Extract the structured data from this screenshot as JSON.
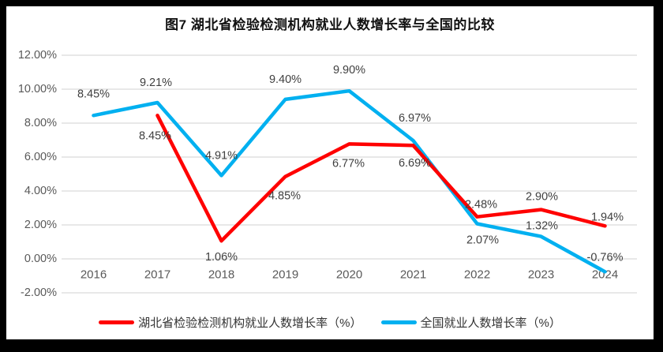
{
  "chart_data": {
    "type": "line",
    "title": "图7 湖北省检验检测机构就业人数增长率与全国的比较",
    "categories": [
      "2016",
      "2017",
      "2018",
      "2019",
      "2020",
      "2021",
      "2022",
      "2023",
      "2024"
    ],
    "series": [
      {
        "name": "湖北省检验检测机构就业人数增长率（%）",
        "color": "#FF0000",
        "values": [
          null,
          8.45,
          1.06,
          4.85,
          6.77,
          6.69,
          2.48,
          2.9,
          1.94
        ],
        "labels": [
          "",
          "8.45%",
          "1.06%",
          "4.85%",
          "6.77%",
          "6.69%",
          "2.48%",
          "2.90%",
          "1.94%"
        ],
        "label_offsets": [
          [
            0,
            0
          ],
          [
            -3,
            26
          ],
          [
            0,
            21
          ],
          [
            -1,
            25
          ],
          [
            -1,
            25
          ],
          [
            2,
            23
          ],
          [
            5,
            -15
          ],
          [
            1,
            -16
          ],
          [
            3,
            -11
          ]
        ]
      },
      {
        "name": "全国就业人数增长率（%）",
        "color": "#00B0F0",
        "values": [
          8.45,
          9.21,
          4.91,
          9.4,
          9.9,
          6.97,
          2.07,
          1.32,
          -0.76
        ],
        "labels": [
          "8.45%",
          "9.21%",
          "4.91%",
          "9.40%",
          "9.90%",
          "6.97%",
          "2.07%",
          "1.32%",
          "-0.76%"
        ],
        "label_offsets": [
          [
            0,
            -27
          ],
          [
            -2,
            -25
          ],
          [
            0,
            -25
          ],
          [
            0,
            -25
          ],
          [
            0,
            -26
          ],
          [
            2,
            -28
          ],
          [
            7,
            21
          ],
          [
            1,
            -13
          ],
          [
            0,
            -18
          ]
        ]
      }
    ],
    "y_axis": {
      "min": -2,
      "max": 12,
      "step": 2,
      "tick_labels": [
        "12.00%",
        "10.00%",
        "8.00%",
        "6.00%",
        "4.00%",
        "2.00%",
        "0.00%",
        "-2.00%"
      ]
    },
    "grid": true,
    "legend_position": "bottom"
  },
  "colors": {
    "grid": "#D9D9D9",
    "axis_text": "#595959",
    "data_label_text": "#404040",
    "frame_border": "#000000",
    "background": "#FFFFFF"
  }
}
